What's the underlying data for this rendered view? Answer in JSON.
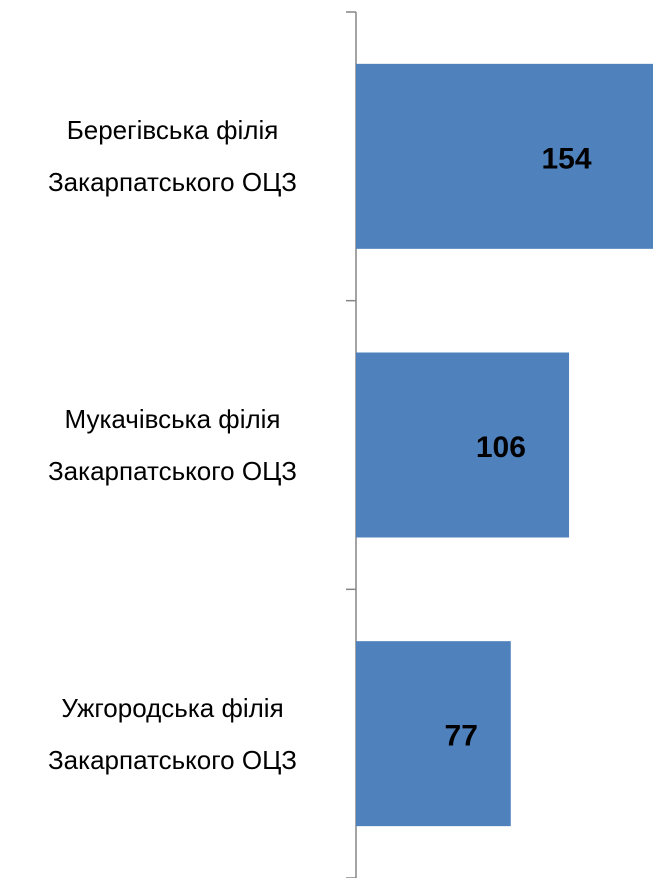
{
  "chart_data": {
    "type": "bar",
    "orientation": "horizontal",
    "categories": [
      "Берегівська філія Закарпатського ОЦЗ",
      "Мукачівська філія Закарпатського ОЦЗ",
      "Ужгородська філія Закарпатського ОЦЗ"
    ],
    "values": [
      154,
      106,
      77
    ],
    "color": "#4f81bd"
  }
}
